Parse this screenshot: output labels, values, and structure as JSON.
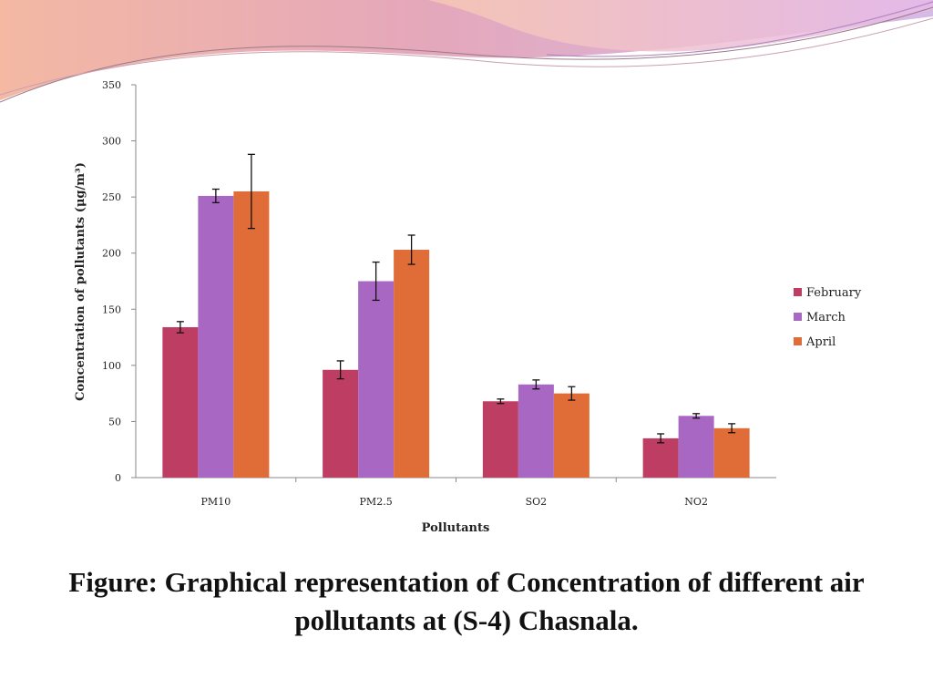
{
  "colors": {
    "february": "#be3e63",
    "march": "#a967c4",
    "april": "#e06c38"
  },
  "caption": {
    "line1": "Figure:  Graphical representation of Concentration of different air",
    "line2": "pollutants at (S-4) Chasnala."
  },
  "chart_data": {
    "type": "bar",
    "title": "",
    "xlabel": "Pollutants",
    "ylabel": "Concentration of pollutants (μg/m³)",
    "ylim": [
      0,
      350
    ],
    "yticks": [
      0,
      50,
      100,
      150,
      200,
      250,
      300,
      350
    ],
    "categories": [
      "PM10",
      "PM2.5",
      "SO2",
      "NO2"
    ],
    "grid": false,
    "legend_position": "right",
    "error_bars": true,
    "series": [
      {
        "name": "February",
        "color": "#be3e63",
        "values": [
          134,
          96,
          68,
          35
        ],
        "errors": [
          5,
          8,
          2,
          4
        ]
      },
      {
        "name": "March",
        "color": "#a967c4",
        "values": [
          251,
          175,
          83,
          55
        ],
        "errors": [
          6,
          17,
          4,
          2
        ]
      },
      {
        "name": "April",
        "color": "#e06c38",
        "values": [
          255,
          203,
          75,
          44
        ],
        "errors": [
          33,
          13,
          6,
          4
        ]
      }
    ]
  }
}
